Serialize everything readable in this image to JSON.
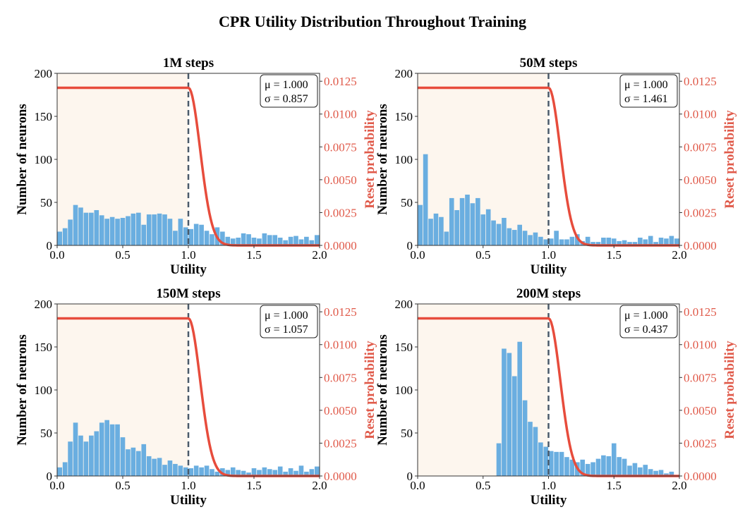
{
  "figure_title": "CPR Utility Distribution Throughout Training",
  "colors": {
    "bars": "#6aaee0",
    "curve": "#e74c3c",
    "threshold": "#4a5a6a",
    "shade": "#fdf6ee",
    "right_axis": "#e05a4a"
  },
  "chart_data": [
    {
      "type": "bar",
      "title": "1M steps",
      "xlabel": "Utility",
      "ylabel": "Number of neurons",
      "ylabel_right": "Reset probability",
      "xlim": [
        0.0,
        2.0
      ],
      "ylim": [
        0,
        200
      ],
      "ylim_right": [
        0.0,
        0.0131
      ],
      "xticks": [
        "0.0",
        "0.5",
        "1.0",
        "1.5",
        "2.0"
      ],
      "yticks": [
        "0",
        "50",
        "100",
        "150",
        "200"
      ],
      "yticks_right": [
        "0.0000",
        "0.0025",
        "0.0050",
        "0.0075",
        "0.0100",
        "0.0125"
      ],
      "bin_width": 0.04,
      "values": [
        16,
        20,
        30,
        47,
        44,
        38,
        38,
        41,
        35,
        31,
        33,
        31,
        32,
        34,
        37,
        38,
        24,
        36,
        36,
        37,
        36,
        31,
        17,
        31,
        21,
        19,
        25,
        24,
        17,
        13,
        21,
        16,
        10,
        8,
        9,
        14,
        13,
        9,
        8,
        14,
        12,
        12,
        9,
        6,
        10,
        11,
        7,
        10,
        6,
        12
      ],
      "threshold": 1.0,
      "reset_prob_max": 0.012,
      "stats": {
        "mu": "μ = 1.000",
        "sigma": "σ = 0.857"
      }
    },
    {
      "type": "bar",
      "title": "50M steps",
      "xlabel": "Utility",
      "ylabel": "Number of neurons",
      "ylabel_right": "Reset probability",
      "xlim": [
        0.0,
        2.0
      ],
      "ylim": [
        0,
        200
      ],
      "ylim_right": [
        0.0,
        0.0131
      ],
      "xticks": [
        "0.0",
        "0.5",
        "1.0",
        "1.5",
        "2.0"
      ],
      "yticks": [
        "0",
        "50",
        "100",
        "150",
        "200"
      ],
      "yticks_right": [
        "0.0000",
        "0.0025",
        "0.0050",
        "0.0075",
        "0.0100",
        "0.0125"
      ],
      "bin_width": 0.04,
      "values": [
        47,
        106,
        31,
        37,
        33,
        16,
        55,
        41,
        55,
        59,
        49,
        55,
        36,
        42,
        29,
        25,
        32,
        20,
        18,
        24,
        17,
        12,
        15,
        10,
        7,
        8,
        17,
        7,
        7,
        10,
        13,
        5,
        10,
        4,
        4,
        9,
        9,
        8,
        5,
        6,
        4,
        4,
        9,
        7,
        11,
        4,
        9,
        8,
        11,
        8
      ],
      "threshold": 1.0,
      "reset_prob_max": 0.012,
      "stats": {
        "mu": "μ = 1.000",
        "sigma": "σ = 1.461"
      }
    },
    {
      "type": "bar",
      "title": "150M steps",
      "xlabel": "Utility",
      "ylabel": "Number of neurons",
      "ylabel_right": "Reset probability",
      "xlim": [
        0.0,
        2.0
      ],
      "ylim": [
        0,
        200
      ],
      "ylim_right": [
        0.0,
        0.0131
      ],
      "xticks": [
        "0.0",
        "0.5",
        "1.0",
        "1.5",
        "2.0"
      ],
      "yticks": [
        "0",
        "50",
        "100",
        "150",
        "200"
      ],
      "yticks_right": [
        "0.0000",
        "0.0025",
        "0.0050",
        "0.0075",
        "0.0100",
        "0.0125"
      ],
      "bin_width": 0.04,
      "values": [
        10,
        16,
        40,
        62,
        47,
        40,
        47,
        52,
        62,
        65,
        60,
        60,
        45,
        31,
        33,
        29,
        37,
        23,
        20,
        21,
        13,
        18,
        14,
        12,
        10,
        9,
        12,
        10,
        12,
        8,
        5,
        9,
        7,
        10,
        7,
        6,
        4,
        9,
        7,
        10,
        8,
        7,
        11,
        5,
        9,
        6,
        12,
        5,
        8,
        11
      ],
      "threshold": 1.0,
      "reset_prob_max": 0.012,
      "stats": {
        "mu": "μ = 1.000",
        "sigma": "σ = 1.057"
      }
    },
    {
      "type": "bar",
      "title": "200M steps",
      "xlabel": "Utility",
      "ylabel": "Number of neurons",
      "ylabel_right": "Reset probability",
      "xlim": [
        0.0,
        2.0
      ],
      "ylim": [
        0,
        200
      ],
      "ylim_right": [
        0.0,
        0.0131
      ],
      "xticks": [
        "0.0",
        "0.5",
        "1.0",
        "1.5",
        "2.0"
      ],
      "yticks": [
        "0",
        "50",
        "100",
        "150",
        "200"
      ],
      "yticks_right": [
        "0.0000",
        "0.0025",
        "0.0050",
        "0.0075",
        "0.0100",
        "0.0125"
      ],
      "bin_width": 0.04,
      "values": [
        0,
        0,
        0,
        0,
        0,
        0,
        0,
        0,
        0,
        0,
        0,
        0,
        0,
        0,
        0,
        38,
        148,
        143,
        116,
        156,
        88,
        63,
        57,
        39,
        34,
        29,
        28,
        28,
        22,
        19,
        16,
        19,
        14,
        16,
        20,
        24,
        23,
        38,
        22,
        20,
        12,
        15,
        10,
        13,
        8,
        6,
        7,
        3,
        5,
        1
      ],
      "threshold": 1.0,
      "reset_prob_max": 0.012,
      "stats": {
        "mu": "μ = 1.000",
        "sigma": "σ = 0.437"
      }
    }
  ]
}
